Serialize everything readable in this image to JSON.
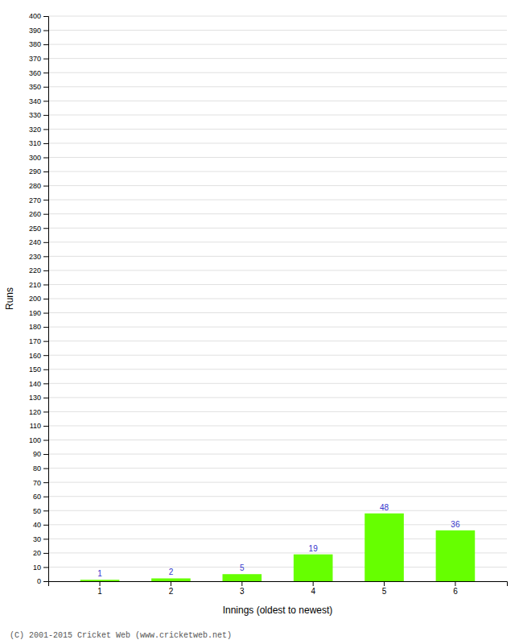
{
  "chart_data": {
    "type": "bar",
    "categories": [
      "1",
      "2",
      "3",
      "4",
      "5",
      "6"
    ],
    "values": [
      1,
      2,
      5,
      19,
      48,
      36
    ],
    "color": "#66ff00",
    "xlabel": "Innings (oldest to newest)",
    "ylabel": "Runs",
    "ylim": [
      0,
      400
    ],
    "yticks": [
      0,
      10,
      20,
      30,
      40,
      50,
      60,
      70,
      80,
      90,
      100,
      110,
      120,
      130,
      140,
      150,
      160,
      170,
      180,
      190,
      200,
      210,
      220,
      230,
      240,
      250,
      260,
      270,
      280,
      290,
      300,
      310,
      320,
      330,
      340,
      350,
      360,
      370,
      380,
      390,
      400
    ],
    "grid": true,
    "data_labels": true,
    "annotations": [
      "(C) 2001-2015 Cricket Web (www.cricketweb.net)"
    ]
  }
}
